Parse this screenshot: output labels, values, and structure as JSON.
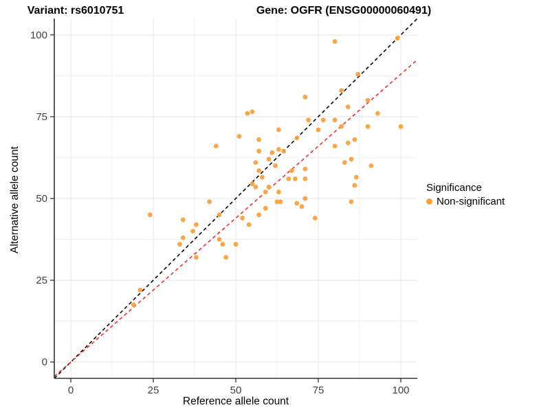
{
  "titles": {
    "left": "Variant: rs6010751",
    "right": "Gene: OGFR (ENSG00000060491)"
  },
  "legend": {
    "title": "Significance",
    "items": [
      {
        "label": "Non-significant",
        "color": "#F9A03F"
      }
    ]
  },
  "chart_data": {
    "type": "scatter",
    "xlabel": "Reference allele count",
    "ylabel": "Alternative allele count",
    "xlim": [
      -5,
      105
    ],
    "ylim": [
      -5,
      105
    ],
    "xticks": [
      0,
      25,
      50,
      75,
      100
    ],
    "yticks": [
      0,
      25,
      50,
      75,
      100
    ],
    "minor_ticks": [
      12.5,
      37.5,
      62.5,
      87.5
    ],
    "grid": true,
    "legend_position": "right",
    "point_color": "#F9A03F",
    "point_radius": 3.4,
    "axis_color": "#333333",
    "tick_label_color": "#404040",
    "grid_major_color": "#e4e4e4",
    "grid_minor_color": "#f1f1f1",
    "lines": [
      {
        "name": "identity-line",
        "color": "#000000",
        "dash": "5,4",
        "slope": 1,
        "intercept": 0
      },
      {
        "name": "expected-ratio-line",
        "color": "#f02b2b",
        "dash": "5,4",
        "slope": 0.88,
        "intercept": 0
      }
    ],
    "points": [
      [
        19,
        17.5
      ],
      [
        21,
        22
      ],
      [
        24,
        45
      ],
      [
        33,
        36
      ],
      [
        34,
        38
      ],
      [
        34,
        43.5
      ],
      [
        37,
        40
      ],
      [
        38,
        32
      ],
      [
        38,
        42
      ],
      [
        42,
        49
      ],
      [
        44,
        66
      ],
      [
        45,
        37.5
      ],
      [
        45,
        45
      ],
      [
        46,
        36
      ],
      [
        47,
        32
      ],
      [
        50,
        36
      ],
      [
        51,
        69
      ],
      [
        52,
        44
      ],
      [
        53.5,
        76
      ],
      [
        55,
        76.5
      ],
      [
        54,
        42
      ],
      [
        55,
        54.5
      ],
      [
        56,
        53.5
      ],
      [
        56,
        61
      ],
      [
        57,
        45
      ],
      [
        57,
        58.5
      ],
      [
        57,
        64.5
      ],
      [
        57,
        68
      ],
      [
        58,
        56.5
      ],
      [
        59,
        47
      ],
      [
        59,
        52
      ],
      [
        60,
        53.5
      ],
      [
        60,
        62
      ],
      [
        61,
        64
      ],
      [
        62,
        60
      ],
      [
        62.5,
        49
      ],
      [
        63,
        52
      ],
      [
        63,
        65
      ],
      [
        63,
        71
      ],
      [
        63.5,
        49
      ],
      [
        64.5,
        64.5
      ],
      [
        66,
        56
      ],
      [
        67,
        58.5
      ],
      [
        68,
        56
      ],
      [
        68.5,
        48.5
      ],
      [
        68.5,
        68.5
      ],
      [
        70,
        47.5
      ],
      [
        71,
        50
      ],
      [
        71,
        56
      ],
      [
        71,
        59
      ],
      [
        71,
        81
      ],
      [
        72,
        74
      ],
      [
        74,
        44
      ],
      [
        75,
        71
      ],
      [
        76.5,
        74
      ],
      [
        80,
        66
      ],
      [
        80,
        74
      ],
      [
        80,
        98
      ],
      [
        82,
        72
      ],
      [
        82,
        83
      ],
      [
        83,
        61
      ],
      [
        84,
        67
      ],
      [
        84,
        78
      ],
      [
        85,
        49
      ],
      [
        85,
        62
      ],
      [
        86,
        54
      ],
      [
        86,
        68
      ],
      [
        86.5,
        56.5
      ],
      [
        87,
        88
      ],
      [
        90,
        72
      ],
      [
        90,
        80
      ],
      [
        91,
        60
      ],
      [
        93,
        76
      ],
      [
        99,
        99
      ],
      [
        100,
        72
      ]
    ]
  }
}
